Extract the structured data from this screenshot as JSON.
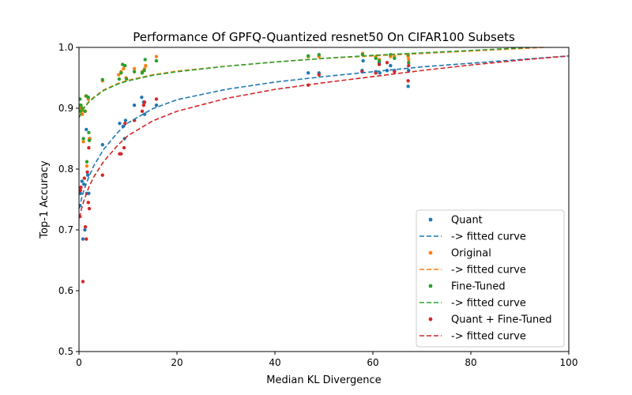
{
  "chart_data": {
    "type": "scatter",
    "title": "Performance Of GPFQ-Quantized resnet50 On CIFAR100 Subsets",
    "xlabel": "Median KL Divergence",
    "ylabel": "Top-1 Accuracy",
    "xlim": [
      0,
      100
    ],
    "ylim": [
      0.5,
      1.0
    ],
    "xticks": [
      0,
      20,
      40,
      60,
      80,
      100
    ],
    "yticks": [
      0.5,
      0.6,
      0.7,
      0.8,
      0.9,
      1.0
    ],
    "xtick_labels": [
      "0",
      "20",
      "40",
      "60",
      "80",
      "100"
    ],
    "ytick_labels": [
      "0.5",
      "0.6",
      "0.7",
      "0.8",
      "0.9",
      "1.0"
    ],
    "grid": false,
    "legend_position": "lower-right",
    "legend": [
      {
        "label": "Quant",
        "kind": "marker",
        "color": "#1f77b4"
      },
      {
        "label": "-> fitted curve",
        "kind": "dashed",
        "color": "#1f77b4"
      },
      {
        "label": "Original",
        "kind": "marker",
        "color": "#ff7f0e"
      },
      {
        "label": "-> fitted curve",
        "kind": "dashed",
        "color": "#ff7f0e"
      },
      {
        "label": "Fine-Tuned",
        "kind": "marker",
        "color": "#2ca02c"
      },
      {
        "label": "-> fitted curve",
        "kind": "dashed",
        "color": "#2ca02c"
      },
      {
        "label": "Quant + Fine-Tuned",
        "kind": "marker",
        "color": "#d62728"
      },
      {
        "label": "-> fitted curve",
        "kind": "dashed",
        "color": "#d62728"
      }
    ],
    "series": [
      {
        "name": "Quant",
        "color": "#1f77b4",
        "points": [
          [
            0.2,
            0.74
          ],
          [
            0.3,
            0.76
          ],
          [
            0.4,
            0.9
          ],
          [
            0.6,
            0.78
          ],
          [
            0.8,
            0.685
          ],
          [
            1.0,
            0.775
          ],
          [
            1.2,
            0.7
          ],
          [
            1.5,
            0.865
          ],
          [
            1.6,
            0.76
          ],
          [
            1.8,
            0.79
          ],
          [
            2.0,
            0.76
          ],
          [
            2.2,
            0.85
          ],
          [
            4.8,
            0.84
          ],
          [
            8.3,
            0.875
          ],
          [
            9.0,
            0.87
          ],
          [
            9.3,
            0.85
          ],
          [
            9.5,
            0.88
          ],
          [
            11.3,
            0.905
          ],
          [
            12.8,
            0.918
          ],
          [
            13.2,
            0.91
          ],
          [
            13.4,
            0.89
          ],
          [
            15.8,
            0.905
          ],
          [
            46.8,
            0.958
          ],
          [
            49.0,
            0.958
          ],
          [
            57.8,
            0.962
          ],
          [
            58.0,
            0.978
          ],
          [
            60.6,
            0.96
          ],
          [
            61.3,
            0.975
          ],
          [
            61.4,
            0.958
          ],
          [
            62.9,
            0.962
          ],
          [
            63.6,
            0.97
          ],
          [
            64.4,
            0.962
          ],
          [
            67.2,
            0.936
          ],
          [
            67.3,
            0.962
          ]
        ],
        "fit": [
          [
            0.05,
            0.735
          ],
          [
            0.3,
            0.743
          ],
          [
            0.5,
            0.751
          ],
          [
            1,
            0.765
          ],
          [
            2,
            0.787
          ],
          [
            3,
            0.805
          ],
          [
            5,
            0.832
          ],
          [
            8,
            0.861
          ],
          [
            10,
            0.876
          ],
          [
            15,
            0.899
          ],
          [
            20,
            0.914
          ],
          [
            30,
            0.931
          ],
          [
            40,
            0.943
          ],
          [
            50,
            0.952
          ],
          [
            60,
            0.96
          ],
          [
            70,
            0.968
          ],
          [
            80,
            0.974
          ],
          [
            90,
            0.98
          ],
          [
            100,
            0.986
          ]
        ]
      },
      {
        "name": "Original",
        "color": "#ff7f0e",
        "points": [
          [
            0.2,
            0.905
          ],
          [
            0.3,
            0.9
          ],
          [
            0.5,
            0.895
          ],
          [
            0.7,
            0.89
          ],
          [
            0.9,
            0.845
          ],
          [
            1.3,
            0.895
          ],
          [
            1.4,
            0.92
          ],
          [
            1.6,
            0.805
          ],
          [
            1.9,
            0.915
          ],
          [
            2.1,
            0.85
          ],
          [
            4.8,
            0.945
          ],
          [
            8.1,
            0.955
          ],
          [
            8.6,
            0.96
          ],
          [
            9.1,
            0.965
          ],
          [
            9.3,
            0.97
          ],
          [
            9.6,
            0.95
          ],
          [
            11.3,
            0.965
          ],
          [
            12.9,
            0.96
          ],
          [
            13.4,
            0.965
          ],
          [
            13.6,
            0.97
          ],
          [
            15.8,
            0.985
          ],
          [
            46.8,
            0.985
          ],
          [
            49.0,
            0.985
          ],
          [
            57.9,
            0.99
          ],
          [
            60.6,
            0.985
          ],
          [
            61.3,
            0.98
          ],
          [
            63.6,
            0.985
          ],
          [
            64.4,
            0.985
          ],
          [
            67.2,
            0.985
          ],
          [
            67.3,
            0.98
          ]
        ],
        "fit": [
          [
            0.05,
            0.886
          ],
          [
            0.3,
            0.89
          ],
          [
            0.5,
            0.894
          ],
          [
            1,
            0.901
          ],
          [
            2,
            0.911
          ],
          [
            3,
            0.918
          ],
          [
            5,
            0.93
          ],
          [
            8,
            0.941
          ],
          [
            10,
            0.946
          ],
          [
            15,
            0.955
          ],
          [
            20,
            0.961
          ],
          [
            30,
            0.969
          ],
          [
            40,
            0.976
          ],
          [
            50,
            0.982
          ],
          [
            60,
            0.986
          ],
          [
            70,
            0.99
          ],
          [
            80,
            0.994
          ],
          [
            90,
            0.998
          ],
          [
            100,
            1.002
          ]
        ]
      },
      {
        "name": "Fine-Tuned",
        "color": "#2ca02c",
        "points": [
          [
            0.2,
            0.915
          ],
          [
            0.3,
            0.895
          ],
          [
            0.4,
            0.905
          ],
          [
            0.7,
            0.9
          ],
          [
            0.9,
            0.85
          ],
          [
            1.2,
            0.895
          ],
          [
            1.5,
            0.92
          ],
          [
            1.6,
            0.812
          ],
          [
            1.9,
            0.918
          ],
          [
            2.0,
            0.86
          ],
          [
            2.1,
            0.847
          ],
          [
            4.8,
            0.947
          ],
          [
            8.2,
            0.948
          ],
          [
            8.6,
            0.958
          ],
          [
            8.9,
            0.972
          ],
          [
            9.4,
            0.97
          ],
          [
            9.7,
            0.948
          ],
          [
            11.3,
            0.96
          ],
          [
            12.9,
            0.958
          ],
          [
            13.3,
            0.962
          ],
          [
            13.5,
            0.98
          ],
          [
            15.8,
            0.978
          ],
          [
            46.8,
            0.986
          ],
          [
            49.0,
            0.988
          ],
          [
            57.9,
            0.988
          ],
          [
            60.6,
            0.982
          ],
          [
            61.3,
            0.978
          ],
          [
            63.6,
            0.988
          ],
          [
            64.4,
            0.982
          ],
          [
            67.2,
            0.988
          ],
          [
            67.3,
            0.975
          ]
        ],
        "fit": [
          [
            0.05,
            0.885
          ],
          [
            0.3,
            0.889
          ],
          [
            0.5,
            0.893
          ],
          [
            1,
            0.9
          ],
          [
            2,
            0.91
          ],
          [
            3,
            0.917
          ],
          [
            5,
            0.929
          ],
          [
            8,
            0.94
          ],
          [
            10,
            0.945
          ],
          [
            15,
            0.954
          ],
          [
            20,
            0.96
          ],
          [
            30,
            0.969
          ],
          [
            40,
            0.976
          ],
          [
            50,
            0.982
          ],
          [
            60,
            0.987
          ],
          [
            70,
            0.991
          ],
          [
            80,
            0.995
          ],
          [
            90,
            0.999
          ],
          [
            100,
            1.003
          ]
        ]
      },
      {
        "name": "Quant + Fine-Tuned",
        "color": "#d62728",
        "points": [
          [
            0.2,
            0.722
          ],
          [
            0.3,
            0.765
          ],
          [
            0.4,
            0.77
          ],
          [
            0.8,
            0.615
          ],
          [
            1.1,
            0.785
          ],
          [
            1.3,
            0.705
          ],
          [
            1.5,
            0.685
          ],
          [
            1.7,
            0.795
          ],
          [
            1.9,
            0.745
          ],
          [
            2.0,
            0.835
          ],
          [
            2.1,
            0.735
          ],
          [
            4.8,
            0.79
          ],
          [
            8.3,
            0.825
          ],
          [
            8.6,
            0.825
          ],
          [
            9.2,
            0.835
          ],
          [
            9.4,
            0.875
          ],
          [
            11.3,
            0.88
          ],
          [
            12.9,
            0.895
          ],
          [
            13.2,
            0.905
          ],
          [
            13.4,
            0.91
          ],
          [
            15.8,
            0.915
          ],
          [
            46.8,
            0.938
          ],
          [
            49.0,
            0.955
          ],
          [
            57.8,
            0.96
          ],
          [
            60.6,
            0.958
          ],
          [
            61.3,
            0.972
          ],
          [
            62.9,
            0.975
          ],
          [
            64.4,
            0.96
          ],
          [
            67.2,
            0.945
          ],
          [
            67.3,
            0.97
          ]
        ],
        "fit": [
          [
            0.05,
            0.72
          ],
          [
            0.3,
            0.727
          ],
          [
            0.5,
            0.734
          ],
          [
            1,
            0.748
          ],
          [
            2,
            0.77
          ],
          [
            3,
            0.787
          ],
          [
            5,
            0.812
          ],
          [
            8,
            0.84
          ],
          [
            10,
            0.855
          ],
          [
            15,
            0.879
          ],
          [
            20,
            0.895
          ],
          [
            30,
            0.916
          ],
          [
            40,
            0.931
          ],
          [
            50,
            0.942
          ],
          [
            60,
            0.952
          ],
          [
            70,
            0.962
          ],
          [
            80,
            0.971
          ],
          [
            90,
            0.979
          ],
          [
            100,
            0.986
          ]
        ]
      }
    ]
  }
}
